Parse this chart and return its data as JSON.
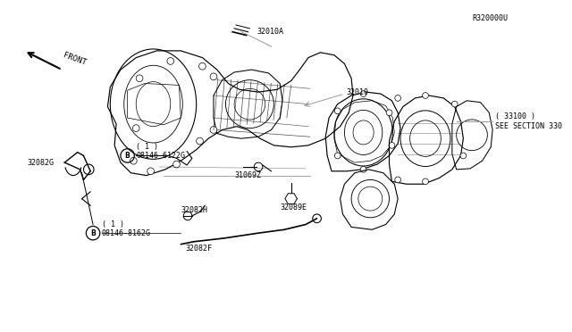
{
  "bg_color": "#ffffff",
  "fig_width": 6.4,
  "fig_height": 3.72,
  "dpi": 100,
  "labels": {
    "b1_label": "08146-8162G",
    "b1_sub": "( 1 )",
    "b2_label": "08146-6122G",
    "b2_sub": "( 1 )",
    "p32082F": "32082F",
    "p32082H": "32082H",
    "p32082G": "32082G",
    "p32089E": "32089E",
    "p31069Z": "31069Z",
    "p32010": "32010",
    "p32010A": "32010A",
    "sec_label": "SEE SECTION 330",
    "sec_sub": "( 33100 )",
    "front_label": "FRONT",
    "diagram_id": "R320000U"
  },
  "font_size": 6.0,
  "line_color": "#999999",
  "text_color": "#000000",
  "draw_color": "#000000"
}
